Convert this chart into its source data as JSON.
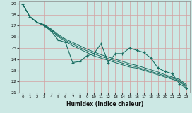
{
  "xlabel": "Humidex (Indice chaleur)",
  "xlim": [
    -0.5,
    23.5
  ],
  "ylim": [
    21,
    29.2
  ],
  "xticks": [
    0,
    1,
    2,
    3,
    4,
    5,
    6,
    7,
    8,
    9,
    10,
    11,
    12,
    13,
    14,
    15,
    16,
    17,
    18,
    19,
    20,
    21,
    22,
    23
  ],
  "yticks": [
    21,
    22,
    23,
    24,
    25,
    26,
    27,
    28,
    29
  ],
  "bg_color": "#cce8e4",
  "line_color": "#1a6e62",
  "grid_color": "#d4a0a0",
  "line_wiggly_x": [
    0,
    1,
    2,
    3,
    4,
    5,
    6,
    7,
    8,
    9,
    10,
    11,
    12,
    13,
    14,
    15,
    16,
    17,
    18,
    19,
    20,
    21,
    22,
    23
  ],
  "line_wiggly_y": [
    28.9,
    27.8,
    27.3,
    27.0,
    26.5,
    25.7,
    25.5,
    23.7,
    23.8,
    24.3,
    24.5,
    25.4,
    23.7,
    24.5,
    24.5,
    25.0,
    24.8,
    24.6,
    24.1,
    23.2,
    22.9,
    22.7,
    21.8,
    21.4
  ],
  "line_smooth1_x": [
    0,
    1,
    2,
    3,
    4,
    5,
    6,
    7,
    8,
    9,
    10,
    11,
    12,
    13,
    14,
    15,
    16,
    17,
    18,
    19,
    20,
    21,
    22,
    23
  ],
  "line_smooth1_y": [
    28.9,
    27.8,
    27.3,
    27.0,
    26.6,
    26.0,
    25.6,
    25.2,
    24.9,
    24.6,
    24.3,
    24.1,
    23.9,
    23.7,
    23.5,
    23.3,
    23.2,
    23.0,
    22.8,
    22.6,
    22.4,
    22.2,
    22.0,
    21.5
  ],
  "line_smooth2_x": [
    0,
    1,
    2,
    3,
    4,
    5,
    6,
    7,
    8,
    9,
    10,
    11,
    12,
    13,
    14,
    15,
    16,
    17,
    18,
    19,
    20,
    21,
    22,
    23
  ],
  "line_smooth2_y": [
    28.9,
    27.8,
    27.3,
    27.05,
    26.65,
    26.1,
    25.7,
    25.35,
    25.05,
    24.75,
    24.5,
    24.25,
    24.05,
    23.85,
    23.65,
    23.45,
    23.3,
    23.1,
    22.9,
    22.7,
    22.5,
    22.3,
    22.1,
    21.6
  ],
  "line_smooth3_x": [
    0,
    1,
    2,
    3,
    4,
    5,
    6,
    7,
    8,
    9,
    10,
    11,
    12,
    13,
    14,
    15,
    16,
    17,
    18,
    19,
    20,
    21,
    22,
    23
  ],
  "line_smooth3_y": [
    28.9,
    27.8,
    27.3,
    27.1,
    26.7,
    26.2,
    25.8,
    25.5,
    25.2,
    24.9,
    24.65,
    24.4,
    24.2,
    24.0,
    23.8,
    23.6,
    23.45,
    23.25,
    23.05,
    22.85,
    22.6,
    22.4,
    22.2,
    21.7
  ]
}
